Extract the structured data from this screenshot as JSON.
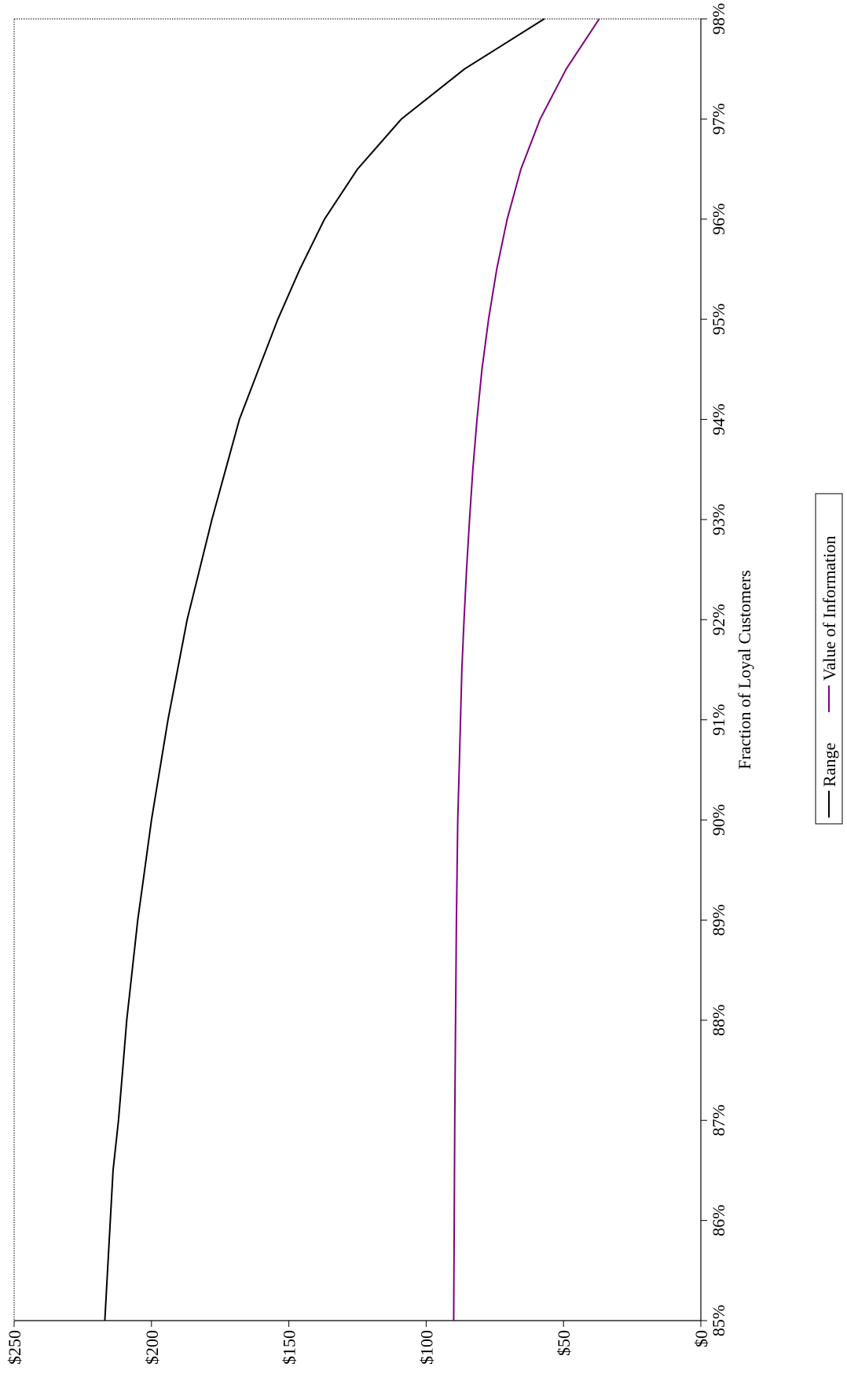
{
  "chart_data": {
    "type": "line",
    "orientation": "rotated-90-clockwise",
    "title": "",
    "xlabel": "Fraction of Loyal Customers",
    "ylabel": "",
    "x_ticks": [
      "85%",
      "86%",
      "87%",
      "88%",
      "89%",
      "90%",
      "91%",
      "92%",
      "93%",
      "94%",
      "95%",
      "96%",
      "97%",
      "98%"
    ],
    "y_ticks": [
      "$0",
      "$50",
      "$100",
      "$150",
      "$200",
      "$250"
    ],
    "xlim": [
      85,
      98
    ],
    "ylim": [
      0,
      250
    ],
    "grid": false,
    "legend_position": "bottom",
    "series": [
      {
        "name": "Range",
        "color": "#000000",
        "points": [
          [
            85.0,
            217
          ],
          [
            85.5,
            216
          ],
          [
            86.0,
            215
          ],
          [
            86.5,
            214
          ],
          [
            87.0,
            212
          ],
          [
            87.5,
            210.5
          ],
          [
            88.0,
            209
          ],
          [
            88.5,
            207
          ],
          [
            89.0,
            205
          ],
          [
            89.5,
            202.5
          ],
          [
            90.0,
            200
          ],
          [
            90.5,
            197
          ],
          [
            91.0,
            194
          ],
          [
            91.5,
            190.5
          ],
          [
            92.0,
            187
          ],
          [
            92.5,
            182.5
          ],
          [
            93.0,
            178
          ],
          [
            93.5,
            173
          ],
          [
            94.0,
            168
          ],
          [
            94.5,
            161
          ],
          [
            95.0,
            154
          ],
          [
            95.5,
            146
          ],
          [
            96.0,
            137
          ],
          [
            96.5,
            125
          ],
          [
            97.0,
            109
          ],
          [
            97.5,
            86
          ],
          [
            98.0,
            57
          ]
        ]
      },
      {
        "name": "Value of Information",
        "color": "#800080",
        "points": [
          [
            85.0,
            90
          ],
          [
            86.0,
            89.8
          ],
          [
            87.0,
            89.6
          ],
          [
            88.0,
            89.3
          ],
          [
            89.0,
            89.0
          ],
          [
            90.0,
            88.5
          ],
          [
            90.5,
            88.0
          ],
          [
            91.0,
            87.5
          ],
          [
            91.5,
            87.0
          ],
          [
            92.0,
            86.2
          ],
          [
            92.5,
            85.3
          ],
          [
            93.0,
            84.2
          ],
          [
            93.5,
            83.0
          ],
          [
            94.0,
            81.5
          ],
          [
            94.5,
            79.7
          ],
          [
            95.0,
            77.3
          ],
          [
            95.5,
            74.3
          ],
          [
            96.0,
            70.5
          ],
          [
            96.5,
            65.5
          ],
          [
            97.0,
            58.5
          ],
          [
            97.5,
            49
          ],
          [
            98.0,
            37
          ]
        ]
      }
    ]
  }
}
